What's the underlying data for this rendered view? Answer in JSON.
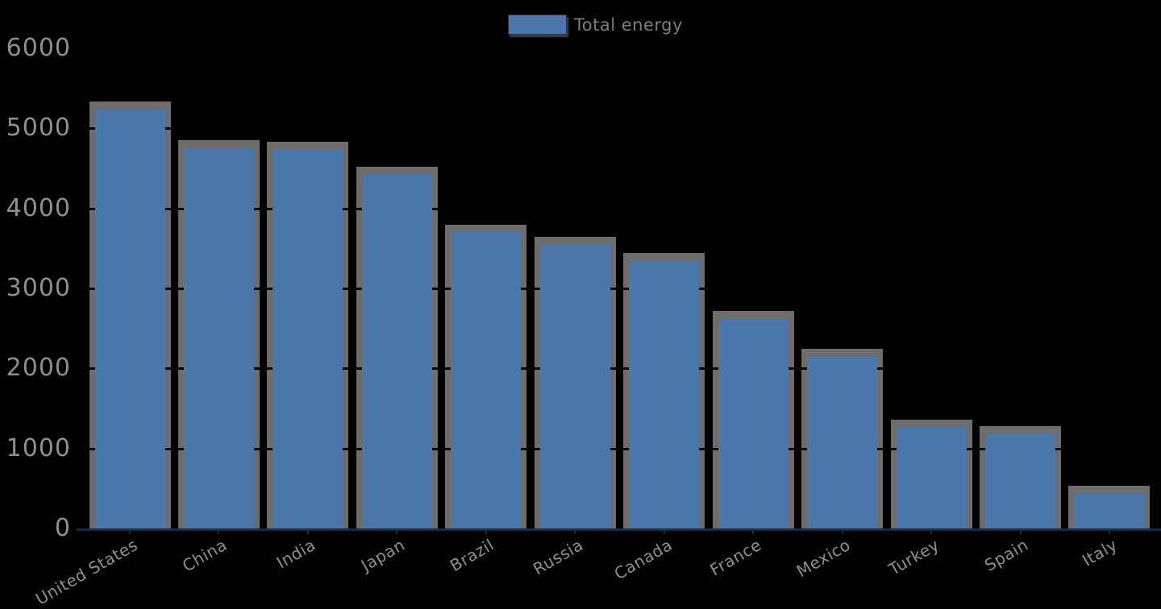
{
  "chart_data": {
    "type": "bar",
    "title": "",
    "xlabel": "",
    "ylabel": "",
    "legend": {
      "label": "Total energy",
      "position": "top center"
    },
    "categories": [
      "United States",
      "China",
      "India",
      "Japan",
      "Brazil",
      "Russia",
      "Canada",
      "France",
      "Mexico",
      "Turkey",
      "Spain",
      "Italy"
    ],
    "values": [
      5250,
      4760,
      4740,
      4430,
      3700,
      3550,
      3350,
      2630,
      2150,
      1270,
      1190,
      440
    ],
    "ylim": [
      0,
      6000
    ],
    "yticks": [
      0,
      1000,
      2000,
      3000,
      4000,
      5000,
      6000
    ],
    "grid": true,
    "x_tick_rotation_deg": 30,
    "colors": {
      "background": "#000000",
      "bar": "#4c77ab",
      "bar_shadow": "#7b7976",
      "gridline": "#000000",
      "axis_line": "#1e2b45",
      "y_tick_label": "#8f8f8f",
      "x_tick_label": "#8f8f8f",
      "legend_text": "#7d7d7d"
    }
  }
}
